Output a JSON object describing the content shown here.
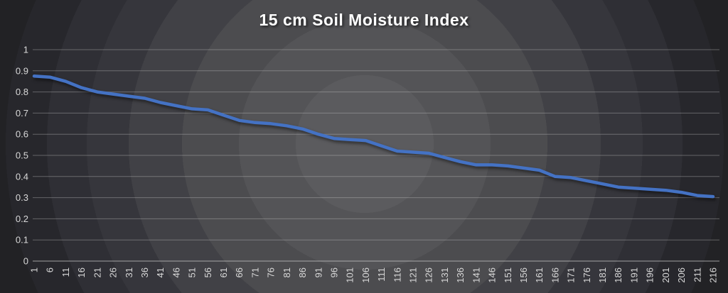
{
  "title": "15 cm Soil Moisture Index",
  "colors": {
    "line": "#4472c4",
    "gridline": "#c9c9c9",
    "axis_line": "#d2d2d2",
    "tick_label": "#d9d9d9",
    "title_text": "#ffffff",
    "background_center": "#5b5b5e",
    "background_outer": "#222225"
  },
  "chart_data": {
    "type": "line",
    "title": "15 cm Soil Moisture Index",
    "xlabel": "",
    "ylabel": "",
    "legend": false,
    "grid": true,
    "x_labels_rotated_90": true,
    "x_range": [
      1,
      216
    ],
    "x_tick_step": 5,
    "x_tick_labels": [
      "1",
      "6",
      "11",
      "16",
      "21",
      "26",
      "31",
      "36",
      "41",
      "46",
      "51",
      "56",
      "61",
      "66",
      "71",
      "76",
      "81",
      "86",
      "91",
      "96",
      "101",
      "106",
      "111",
      "116",
      "121",
      "126",
      "131",
      "136",
      "141",
      "146",
      "151",
      "156",
      "161",
      "166",
      "171",
      "176",
      "181",
      "186",
      "191",
      "196",
      "201",
      "206",
      "211",
      "216"
    ],
    "ylim": [
      0,
      1
    ],
    "y_ticks": [
      0,
      0.1,
      0.2,
      0.3,
      0.4,
      0.5,
      0.6,
      0.7,
      0.8,
      0.9,
      1
    ],
    "series": [
      {
        "name": "15 cm Soil Moisture Index",
        "values": [
          0.875,
          0.87,
          0.85,
          0.82,
          0.8,
          0.79,
          0.78,
          0.77,
          0.75,
          0.735,
          0.72,
          0.715,
          0.69,
          0.665,
          0.655,
          0.65,
          0.64,
          0.625,
          0.6,
          0.58,
          0.575,
          0.57,
          0.545,
          0.52,
          0.515,
          0.51,
          0.49,
          0.47,
          0.455,
          0.455,
          0.45,
          0.44,
          0.43,
          0.4,
          0.395,
          0.38,
          0.365,
          0.35,
          0.345,
          0.34,
          0.335,
          0.325,
          0.31,
          0.305
        ]
      }
    ]
  }
}
